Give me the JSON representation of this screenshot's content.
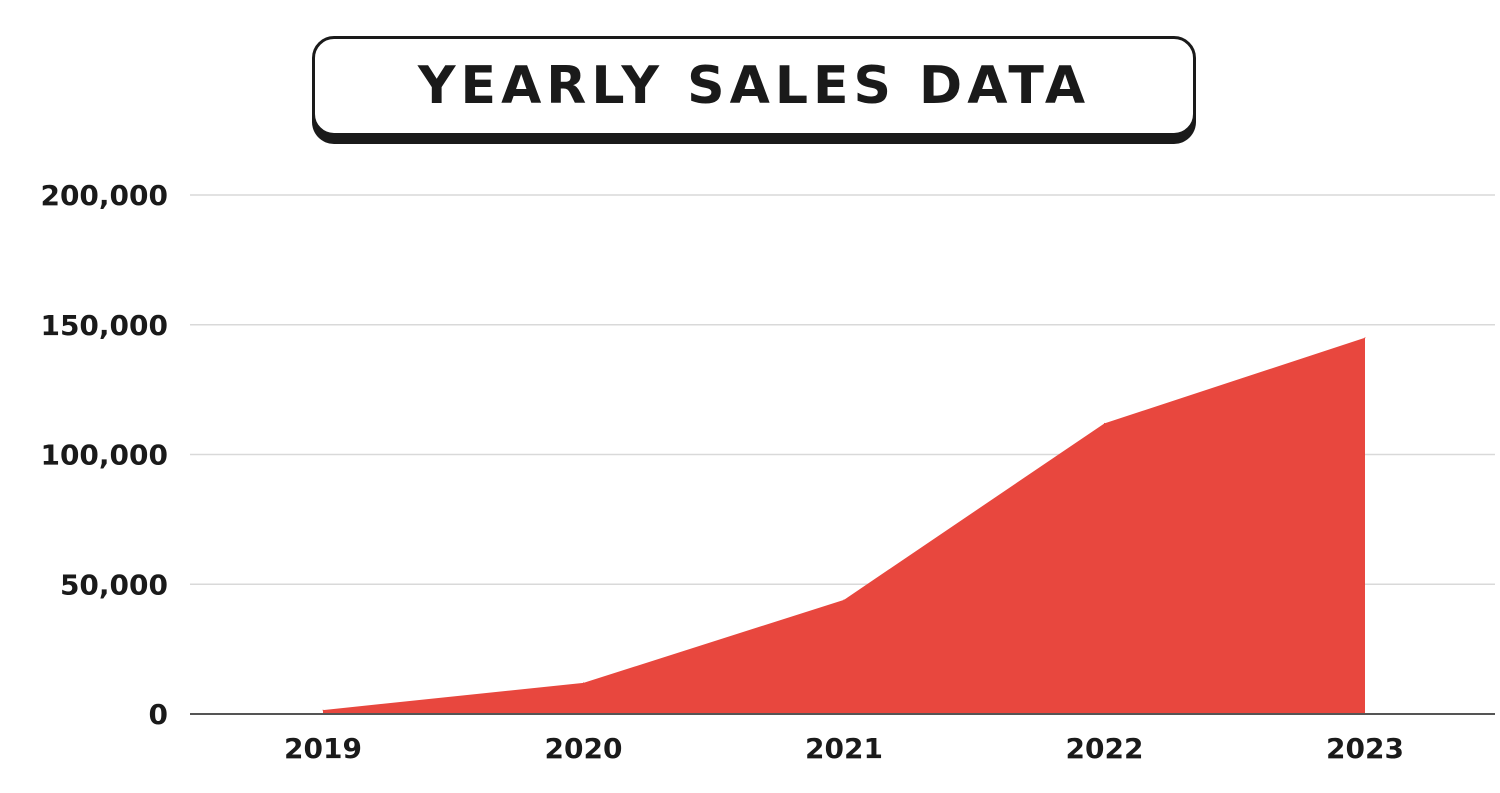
{
  "chart_data": {
    "type": "area",
    "title": "YEARLY SALES DATA",
    "xlabel": "",
    "ylabel": "",
    "categories": [
      "2019",
      "2020",
      "2021",
      "2022",
      "2023"
    ],
    "values": [
      1500,
      12000,
      44000,
      112000,
      145000
    ],
    "ylim": [
      0,
      200000
    ],
    "yticks": [
      0,
      50000,
      100000,
      150000,
      200000
    ],
    "ytick_labels": [
      "0",
      "50,000",
      "100,000",
      "150,000",
      "200,000"
    ],
    "grid": true,
    "legend": "none",
    "colors": {
      "area": "#e8473e",
      "grid": "#d9d9d9",
      "axis": "#555555",
      "text": "#1a1a1a"
    }
  }
}
